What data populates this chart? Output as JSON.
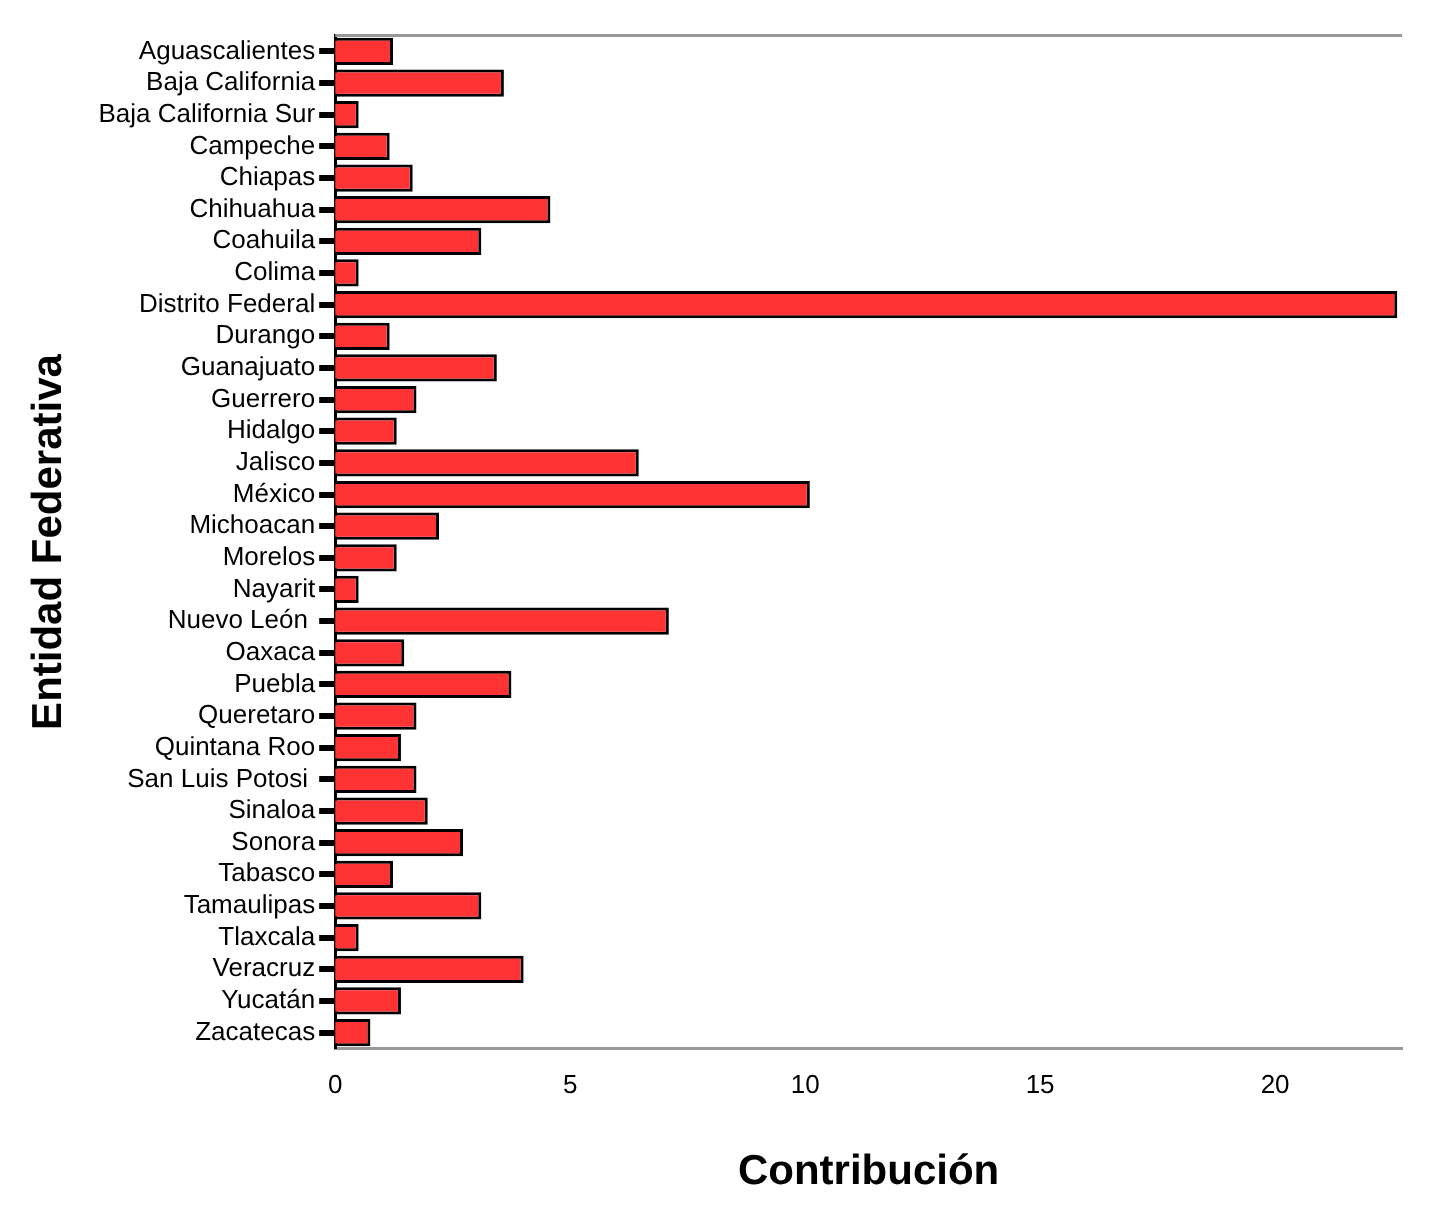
{
  "chart_data": {
    "type": "bar",
    "orientation": "horizontal",
    "xlabel": "Contribución",
    "ylabel": "Entidad Federativa",
    "categories": [
      "Aguascalientes",
      "Baja California",
      "Baja California Sur",
      "Campeche",
      "Chiapas",
      "Chihuahua",
      "Coahuila",
      "Colima",
      "Distrito Federal",
      "Durango",
      "Guanajuato",
      "Guerrero",
      "Hidalgo",
      "Jalisco",
      "México",
      "Michoacan",
      "Morelos",
      "Nayarit",
      "Nuevo León ",
      "Oaxaca",
      "Puebla",
      "Queretaro",
      "Quintana Roo",
      "San Luis Potosi ",
      "Sinaloa",
      "Sonora",
      "Tabasco",
      "Tamaulipas",
      "Tlaxcala",
      "Veracruz",
      "Yucatán",
      "Zacatecas"
    ],
    "values": [
      1.23,
      3.59,
      0.5,
      1.16,
      1.65,
      4.58,
      3.11,
      0.5,
      22.6,
      1.16,
      3.44,
      1.73,
      1.31,
      6.46,
      10.1,
      2.21,
      1.31,
      0.5,
      7.1,
      1.47,
      3.75,
      1.73,
      1.4,
      1.73,
      1.97,
      2.72,
      1.23,
      3.11,
      0.5,
      4.01,
      1.4,
      0.75
    ],
    "color": "#ff3333",
    "xlim": [
      0,
      22.7
    ],
    "xticks": [
      0,
      5,
      10,
      15,
      20
    ],
    "grid": false,
    "legend": false
  }
}
